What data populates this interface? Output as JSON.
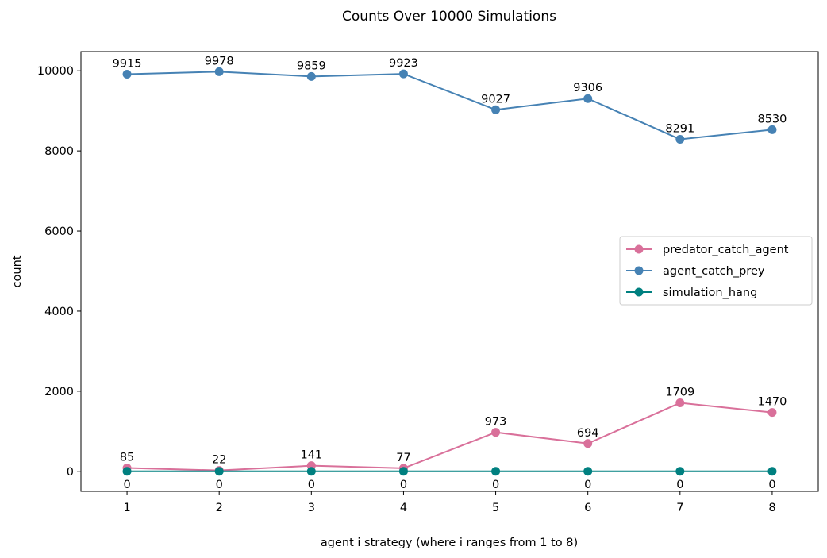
{
  "chart_data": {
    "type": "line",
    "title": "Counts Over 10000 Simulations",
    "xlabel": "agent i strategy (where i ranges from 1 to 8)",
    "ylabel": "count",
    "x": [
      1,
      2,
      3,
      4,
      5,
      6,
      7,
      8
    ],
    "x_ticks": [
      "1",
      "2",
      "3",
      "4",
      "5",
      "6",
      "7",
      "8"
    ],
    "y_ticks": [
      0,
      2000,
      4000,
      6000,
      8000,
      10000
    ],
    "xlim": [
      0.5,
      8.5
    ],
    "ylim": [
      -500,
      10480
    ],
    "grid": false,
    "legend_position": "center-right",
    "series": [
      {
        "name": "predator_catch_agent",
        "color": "#d9709a",
        "values": [
          85,
          22,
          141,
          77,
          973,
          694,
          1709,
          1470
        ],
        "label_position": "above"
      },
      {
        "name": "agent_catch_prey",
        "color": "#4682b4",
        "values": [
          9915,
          9978,
          9859,
          9923,
          9027,
          9306,
          8291,
          8530
        ],
        "label_position": "above"
      },
      {
        "name": "simulation_hang",
        "color": "#008080",
        "values": [
          0,
          0,
          0,
          0,
          0,
          0,
          0,
          0
        ],
        "label_position": "below"
      }
    ]
  }
}
